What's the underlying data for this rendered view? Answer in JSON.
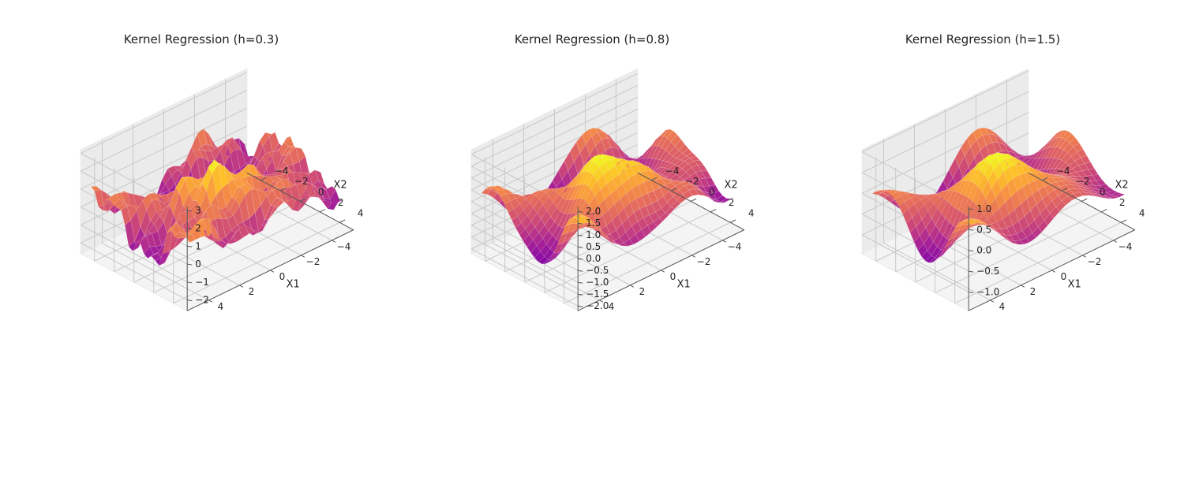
{
  "chart_data": [
    {
      "type": "surface3d",
      "title": "Kernel Regression (h=0.3)",
      "xlabel": "X1",
      "ylabel": "X2",
      "zlabel": "",
      "xlim": [
        -5,
        5
      ],
      "ylim": [
        -5,
        5
      ],
      "zlim": [
        -2.6,
        3.2
      ],
      "xticks": [
        -4,
        -2,
        0,
        2,
        4
      ],
      "yticks": [
        -4,
        -2,
        0,
        2,
        4
      ],
      "zticks": [
        -2,
        -1,
        0,
        1,
        2,
        3
      ],
      "ztick_labels": [
        "−2",
        "−1",
        "0",
        "1",
        "2",
        "3"
      ],
      "xtick_labels": [
        "−4",
        "−2",
        "0",
        "2",
        "4"
      ],
      "ytick_labels": [
        "−4",
        "−2",
        "0",
        "2",
        "4"
      ],
      "bandwidth": 0.3,
      "z_range": [
        -2.5,
        2.9
      ],
      "grid": true,
      "colormap": "plasma"
    },
    {
      "type": "surface3d",
      "title": "Kernel Regression (h=0.8)",
      "xlabel": "X1",
      "ylabel": "X2",
      "zlabel": "",
      "xlim": [
        -5,
        5
      ],
      "ylim": [
        -5,
        5
      ],
      "zlim": [
        -2.2,
        2.2
      ],
      "xticks": [
        -4,
        -2,
        0,
        2,
        4
      ],
      "yticks": [
        -4,
        -2,
        0,
        2,
        4
      ],
      "zticks": [
        -2.0,
        -1.5,
        -1.0,
        -0.5,
        0.0,
        0.5,
        1.0,
        1.5,
        2.0
      ],
      "ztick_labels": [
        "−2.0",
        "−1.5",
        "−1.0",
        "−0.5",
        "0.0",
        "0.5",
        "1.0",
        "1.5",
        "2.0"
      ],
      "xtick_labels": [
        "−4",
        "−2",
        "0",
        "2",
        "4"
      ],
      "ytick_labels": [
        "−4",
        "−2",
        "0",
        "2",
        "4"
      ],
      "bandwidth": 0.8,
      "z_range": [
        -2.0,
        2.0
      ],
      "grid": true,
      "colormap": "plasma"
    },
    {
      "type": "surface3d",
      "title": "Kernel Regression (h=1.5)",
      "xlabel": "X1",
      "ylabel": "X2",
      "zlabel": "",
      "xlim": [
        -5,
        5
      ],
      "ylim": [
        -5,
        5
      ],
      "zlim": [
        -1.45,
        1.05
      ],
      "xticks": [
        -4,
        -2,
        0,
        2,
        4
      ],
      "yticks": [
        -4,
        -2,
        0,
        2,
        4
      ],
      "zticks": [
        -1.0,
        -0.5,
        0.0,
        0.5,
        1.0
      ],
      "ztick_labels": [
        "−1.0",
        "−0.5",
        "0.0",
        "0.5",
        "1.0"
      ],
      "xtick_labels": [
        "−4",
        "−2",
        "0",
        "2",
        "4"
      ],
      "ytick_labels": [
        "−4",
        "−2",
        "0",
        "2",
        "4"
      ],
      "bandwidth": 1.5,
      "z_range": [
        -1.4,
        1.0
      ],
      "grid": true,
      "colormap": "plasma"
    }
  ],
  "colors": {
    "pane_back": "#f2f2f2",
    "pane_side": "#ebebeb",
    "pane_floor": "#f4f4f4",
    "grid": "#c8c8c8",
    "axis_line": "#555555",
    "text": "#222222",
    "surface_edge": "#ffffff"
  }
}
